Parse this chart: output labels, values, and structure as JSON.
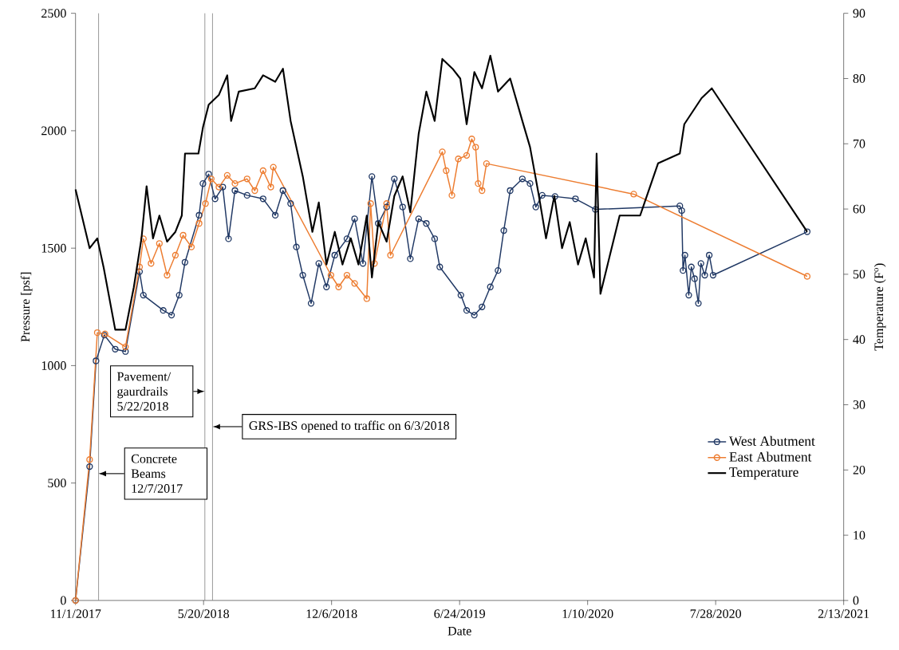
{
  "chart_data": {
    "type": "line",
    "xlabel": "Date",
    "ylabel": "Pressure [psf]",
    "y2label": "Temperature (F$^{o}$)",
    "xlim": [
      "2017-11-01",
      "2021-02-13"
    ],
    "xticks": [
      {
        "value": "2017-11-01",
        "label": "11/1/2017"
      },
      {
        "value": "2018-05-20",
        "label": "5/20/2018"
      },
      {
        "value": "2018-12-06",
        "label": "12/6/2018"
      },
      {
        "value": "2019-06-24",
        "label": "6/24/2019"
      },
      {
        "value": "2020-01-10",
        "label": "1/10/2020"
      },
      {
        "value": "2020-07-28",
        "label": "7/28/2020"
      },
      {
        "value": "2021-02-13",
        "label": "2/13/2021"
      }
    ],
    "ylim": [
      0,
      2500
    ],
    "yticks": [
      0,
      500,
      1000,
      1500,
      2000,
      2500
    ],
    "y2lim": [
      0,
      90
    ],
    "y2ticks": [
      0,
      10,
      20,
      30,
      40,
      50,
      60,
      70,
      80,
      90
    ],
    "legend": "bottom right",
    "ref_lines": [
      {
        "axis": "x",
        "value": "2017-12-07",
        "label": "Concrete Beams 12/7/2017",
        "color": "#7f7f7f"
      },
      {
        "axis": "x",
        "value": "2018-05-22",
        "label": "Pavement/ gaurdrails 5/22/2018",
        "color": "#7f7f7f"
      },
      {
        "axis": "x",
        "value": "2018-06-03",
        "label": "GRS-IBS opened to traffic on 6/3/2018",
        "color": "#7f7f7f"
      }
    ],
    "series": [
      {
        "name": "West Abutment",
        "color": "#203864",
        "marker": "circle",
        "x": [
          "2017-11-01",
          "2017-11-23",
          "2017-12-03",
          "2017-12-16",
          "2018-01-02",
          "2018-01-18",
          "2018-02-09",
          "2018-02-15",
          "2018-03-18",
          "2018-03-31",
          "2018-04-12",
          "2018-04-21",
          "2018-05-13",
          "2018-05-19",
          "2018-05-28",
          "2018-06-07",
          "2018-06-19",
          "2018-06-28",
          "2018-07-08",
          "2018-07-27",
          "2018-08-21",
          "2018-09-09",
          "2018-09-21",
          "2018-10-03",
          "2018-10-12",
          "2018-10-22",
          "2018-11-04",
          "2018-11-16",
          "2018-11-28",
          "2018-12-11",
          "2018-12-30",
          "2019-01-11",
          "2019-01-24",
          "2019-02-07",
          "2019-02-17",
          "2019-03-02",
          "2019-03-14",
          "2019-03-27",
          "2019-04-08",
          "2019-04-21",
          "2019-05-03",
          "2019-05-16",
          "2019-05-24",
          "2019-06-26",
          "2019-07-05",
          "2019-07-17",
          "2019-07-29",
          "2019-08-11",
          "2019-08-23",
          "2019-09-01",
          "2019-09-11",
          "2019-09-30",
          "2019-10-12",
          "2019-10-21",
          "2019-10-31",
          "2019-11-20",
          "2019-12-22",
          "2020-01-22",
          "2020-06-02",
          "2020-06-05",
          "2020-06-07",
          "2020-06-10",
          "2020-06-16",
          "2020-06-20",
          "2020-06-25",
          "2020-07-01",
          "2020-07-05",
          "2020-07-11",
          "2020-07-18",
          "2020-07-24",
          "2020-12-18"
        ],
        "values": [
          0,
          570,
          1020,
          1130,
          1070,
          1060,
          1400,
          1300,
          1235,
          1215,
          1300,
          1440,
          1640,
          1775,
          1815,
          1710,
          1760,
          1540,
          1745,
          1725,
          1710,
          1640,
          1745,
          1690,
          1505,
          1385,
          1265,
          1435,
          1335,
          1470,
          1540,
          1625,
          1435,
          1805,
          1605,
          1675,
          1795,
          1675,
          1455,
          1625,
          1605,
          1540,
          1420,
          1300,
          1235,
          1215,
          1250,
          1335,
          1405,
          1575,
          1745,
          1795,
          1775,
          1675,
          1725,
          1720,
          1710,
          1665,
          1680,
          1660,
          1405,
          1470,
          1300,
          1420,
          1370,
          1265,
          1435,
          1385,
          1470,
          1385,
          1570
        ]
      },
      {
        "name": "East Abutment",
        "color": "#ed7d31",
        "marker": "circle",
        "x": [
          "2017-11-01",
          "2017-11-23",
          "2017-12-05",
          "2017-12-17",
          "2018-01-18",
          "2018-02-09",
          "2018-02-15",
          "2018-02-27",
          "2018-03-12",
          "2018-03-24",
          "2018-04-06",
          "2018-04-18",
          "2018-05-01",
          "2018-05-13",
          "2018-05-23",
          "2018-06-01",
          "2018-06-13",
          "2018-06-26",
          "2018-07-08",
          "2018-07-27",
          "2018-08-08",
          "2018-08-21",
          "2018-09-02",
          "2018-09-06",
          "2018-12-05",
          "2018-12-17",
          "2018-12-30",
          "2019-01-11",
          "2019-01-30",
          "2019-02-05",
          "2019-02-11",
          "2019-03-02",
          "2019-03-08",
          "2019-05-28",
          "2019-06-03",
          "2019-06-12",
          "2019-06-22",
          "2019-07-05",
          "2019-07-13",
          "2019-07-19",
          "2019-07-23",
          "2019-07-29",
          "2019-08-05",
          "2020-03-22",
          "2020-12-18"
        ],
        "values": [
          0,
          600,
          1140,
          1135,
          1080,
          1420,
          1540,
          1435,
          1520,
          1385,
          1470,
          1555,
          1505,
          1605,
          1690,
          1795,
          1760,
          1810,
          1775,
          1795,
          1745,
          1830,
          1760,
          1845,
          1385,
          1335,
          1385,
          1350,
          1285,
          1690,
          1435,
          1690,
          1470,
          1910,
          1830,
          1725,
          1880,
          1895,
          1965,
          1930,
          1775,
          1745,
          1860,
          1730,
          1380
        ]
      },
      {
        "name": "Temperature",
        "color": "#000000",
        "marker": "none",
        "axis": "y2",
        "x": [
          "2017-11-01",
          "2017-11-23",
          "2017-12-05",
          "2017-12-15",
          "2018-01-02",
          "2018-01-18",
          "2018-01-31",
          "2018-02-12",
          "2018-02-20",
          "2018-03-02",
          "2018-03-12",
          "2018-03-24",
          "2018-04-06",
          "2018-04-16",
          "2018-04-21",
          "2018-05-12",
          "2018-05-19",
          "2018-05-28",
          "2018-06-13",
          "2018-06-26",
          "2018-07-02",
          "2018-07-14",
          "2018-08-08",
          "2018-08-21",
          "2018-09-09",
          "2018-09-21",
          "2018-10-03",
          "2018-10-22",
          "2018-11-06",
          "2018-11-16",
          "2018-11-28",
          "2018-12-11",
          "2018-12-23",
          "2019-01-05",
          "2019-01-17",
          "2019-01-30",
          "2019-02-07",
          "2019-02-17",
          "2019-03-02",
          "2019-03-14",
          "2019-03-27",
          "2019-04-08",
          "2019-04-21",
          "2019-05-03",
          "2019-05-16",
          "2019-05-28",
          "2019-06-13",
          "2019-06-25",
          "2019-07-05",
          "2019-07-17",
          "2019-07-29",
          "2019-08-11",
          "2019-08-23",
          "2019-09-11",
          "2019-09-30",
          "2019-10-12",
          "2019-10-25",
          "2019-11-06",
          "2019-11-19",
          "2019-12-01",
          "2019-12-13",
          "2019-12-26",
          "2020-01-07",
          "2020-01-20",
          "2020-01-24",
          "2020-01-30",
          "2020-02-29",
          "2020-04-01",
          "2020-04-29",
          "2020-06-02",
          "2020-06-09",
          "2020-07-06",
          "2020-07-22",
          "2020-12-18"
        ],
        "values": [
          63,
          54,
          55.5,
          51,
          41.5,
          41.5,
          48,
          55.5,
          63.5,
          55.5,
          59,
          55,
          56.5,
          59,
          68.5,
          68.5,
          72.5,
          76,
          77.5,
          80.5,
          73.5,
          78,
          78.5,
          80.5,
          79.5,
          81.5,
          73.5,
          65,
          56.5,
          61,
          51.5,
          56.5,
          51.5,
          55.5,
          51.5,
          59,
          49.5,
          58,
          55,
          62,
          65,
          59.5,
          71.5,
          78,
          73.5,
          83,
          81.5,
          80,
          73,
          81,
          78.5,
          83.5,
          78,
          80,
          73.5,
          69.5,
          62.5,
          55.5,
          62,
          54,
          58,
          51.5,
          55.5,
          49.5,
          68.5,
          47,
          59,
          59,
          67,
          68.5,
          73,
          77,
          78.5,
          56.5
        ]
      }
    ]
  }
}
